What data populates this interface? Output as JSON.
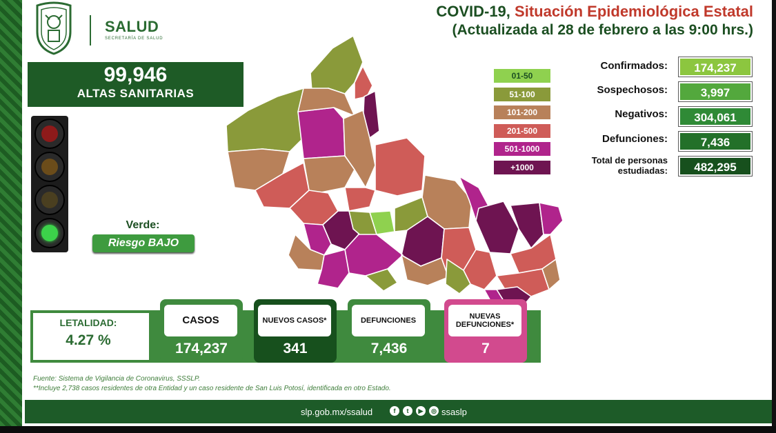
{
  "header": {
    "brand": "SALUD",
    "brand_sub": "SECRETARÍA DE SALUD",
    "title_part1": "COVID-19,",
    "title_part2": "Situación Epidemiológica Estatal",
    "subtitle": "(Actualizada al 28 de febrero a las 9:00 hrs.)"
  },
  "altas": {
    "number": "99,946",
    "label": "ALTAS SANITARIAS"
  },
  "semaforo": {
    "lamps": [
      {
        "name": "red-lamp",
        "color": "#8e1a1a",
        "active": false
      },
      {
        "name": "orange-lamp",
        "color": "#6b4c1a",
        "active": false
      },
      {
        "name": "yellow-lamp",
        "color": "#4a3f20",
        "active": false
      },
      {
        "name": "green-lamp",
        "color": "#3cd24a",
        "active": true
      }
    ],
    "status_label": "Verde:",
    "risk_label": "Riesgo BAJO"
  },
  "legend": [
    {
      "label": "01-50",
      "bg": "#8fd14f",
      "fg": "#1c4f22"
    },
    {
      "label": "51-100",
      "bg": "#8a9a3a",
      "fg": "#ffffff"
    },
    {
      "label": "101-200",
      "bg": "#b8815a",
      "fg": "#ffffff"
    },
    {
      "label": "201-500",
      "bg": "#cf5c58",
      "fg": "#ffffff"
    },
    {
      "label": "501-1000",
      "bg": "#b0248c",
      "fg": "#ffffff"
    },
    {
      "label": "+1000",
      "bg": "#6e1451",
      "fg": "#ffffff"
    }
  ],
  "stats": [
    {
      "label": "Confirmados:",
      "value": "174,237",
      "color": "#8cc63f"
    },
    {
      "label": "Sospechosos:",
      "value": "3,997",
      "color": "#53a83d"
    },
    {
      "label": "Negativos:",
      "value": "304,061",
      "color": "#2f8a36"
    },
    {
      "label": "Defunciones:",
      "value": "7,436",
      "color": "#237029"
    },
    {
      "label": "Total de personas estudiadas:",
      "value": "482,295",
      "color": "#17501d"
    }
  ],
  "letalidad": {
    "label": "LETALIDAD:",
    "value": "4.27 %"
  },
  "cards": [
    {
      "title": "CASOS",
      "value": "174,237",
      "color": "#3f8a3e",
      "title_size": 15
    },
    {
      "title": "NUEVOS CASOS*",
      "value": "341",
      "color": "#17501d",
      "title_size": 11
    },
    {
      "title": "DEFUNCIONES",
      "value": "7,436",
      "color": "#3f8a3e",
      "title_size": 11
    },
    {
      "title": "NUEVAS DEFUNCIONES*",
      "value": "7",
      "color": "#d24a8e",
      "title_size": 11
    }
  ],
  "notes": {
    "fuente": "Fuente: Sistema de Vigilancia de Coronavirus, SSSLP.",
    "nota": "**Incluye 2,738 casos residentes de otra Entidad y un caso residente de San Luis Potosí, identificada en otro Estado."
  },
  "footer": {
    "url": "slp.gob.mx/ssalud",
    "handle": "ssaslp"
  }
}
